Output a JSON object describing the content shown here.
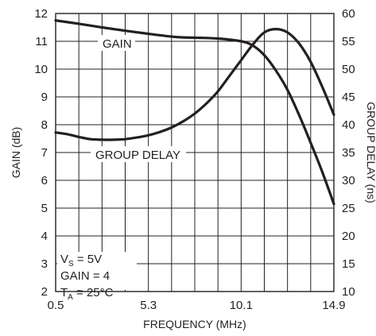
{
  "chart_data": {
    "type": "line",
    "x_ticks": [
      "0.5",
      "5.3",
      "10.1",
      "14.9"
    ],
    "x_minor_tick_values": [
      1.7,
      2.9,
      4.1,
      6.5,
      7.7,
      8.9,
      11.3,
      12.5,
      13.7
    ],
    "xlim": [
      0.5,
      14.9
    ],
    "xlabel": "FREQUENCY (MHz)",
    "ylabel_left": "GAIN (dB)",
    "ylim_left": [
      2,
      12
    ],
    "y_ticks_left": [
      "2",
      "3",
      "4",
      "5",
      "6",
      "7",
      "8",
      "9",
      "10",
      "11",
      "12"
    ],
    "ylabel_right": "GROUP DELAY (ns)",
    "ylim_right": [
      10,
      60
    ],
    "y_ticks_right": [
      "10",
      "15",
      "20",
      "25",
      "30",
      "35",
      "40",
      "45",
      "50",
      "55",
      "60"
    ],
    "grid": true,
    "series": [
      {
        "name": "GAIN",
        "axis": "left",
        "x": [
          0.5,
          1.7,
          2.9,
          4.1,
          5.3,
          6.5,
          7.1,
          7.7,
          8.9,
          10.1,
          10.7,
          11.3,
          11.9,
          12.5,
          13.1,
          13.7,
          14.3,
          14.9
        ],
        "values": [
          11.75,
          11.63,
          11.5,
          11.38,
          11.27,
          11.17,
          11.14,
          11.13,
          11.1,
          11.0,
          10.85,
          10.5,
          9.95,
          9.25,
          8.35,
          7.35,
          6.3,
          5.15
        ]
      },
      {
        "name": "GROUP DELAY",
        "axis": "right",
        "x": [
          0.5,
          1.1,
          1.7,
          2.3,
          2.9,
          3.5,
          4.1,
          4.7,
          5.3,
          5.9,
          6.5,
          7.1,
          7.7,
          8.3,
          8.9,
          9.5,
          10.1,
          10.7,
          11.3,
          11.9,
          12.5,
          13.1,
          13.7,
          14.3,
          14.9
        ],
        "values": [
          38.6,
          38.3,
          37.8,
          37.4,
          37.3,
          37.3,
          37.4,
          37.7,
          38.1,
          38.7,
          39.5,
          40.6,
          42.0,
          43.8,
          46.0,
          48.8,
          51.6,
          54.4,
          56.6,
          57.2,
          56.6,
          54.6,
          51.3,
          46.8,
          41.8
        ]
      }
    ],
    "annotations": {
      "gain_label": "GAIN",
      "group_delay_label": "GROUP DELAY"
    },
    "conditions": {
      "vs_main": "V",
      "vs_sub": "S",
      "vs_value": " = 5V",
      "gain_line": "GAIN = 4",
      "ta_main": "T",
      "ta_sub": "A",
      "ta_value": " = 25°C"
    }
  }
}
